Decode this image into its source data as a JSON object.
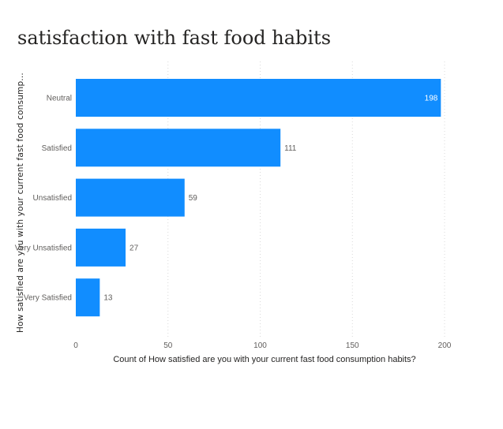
{
  "chart_data": {
    "type": "bar",
    "orientation": "horizontal",
    "title": "satisfaction with fast food habits",
    "xlabel": "Count of How satisfied are you with your current fast food consumption habits?",
    "ylabel": "How satisfied are you with your current fast food consump...",
    "categories": [
      "Neutral",
      "Satisfied",
      "Unsatisfied",
      "Very Unsatisfied",
      "Very Satisfied"
    ],
    "values": [
      198,
      111,
      59,
      27,
      13
    ],
    "xlim": [
      0,
      200
    ],
    "xticks": [
      0,
      50,
      100,
      150,
      200
    ],
    "grid": true,
    "bar_color": "#118dff"
  }
}
